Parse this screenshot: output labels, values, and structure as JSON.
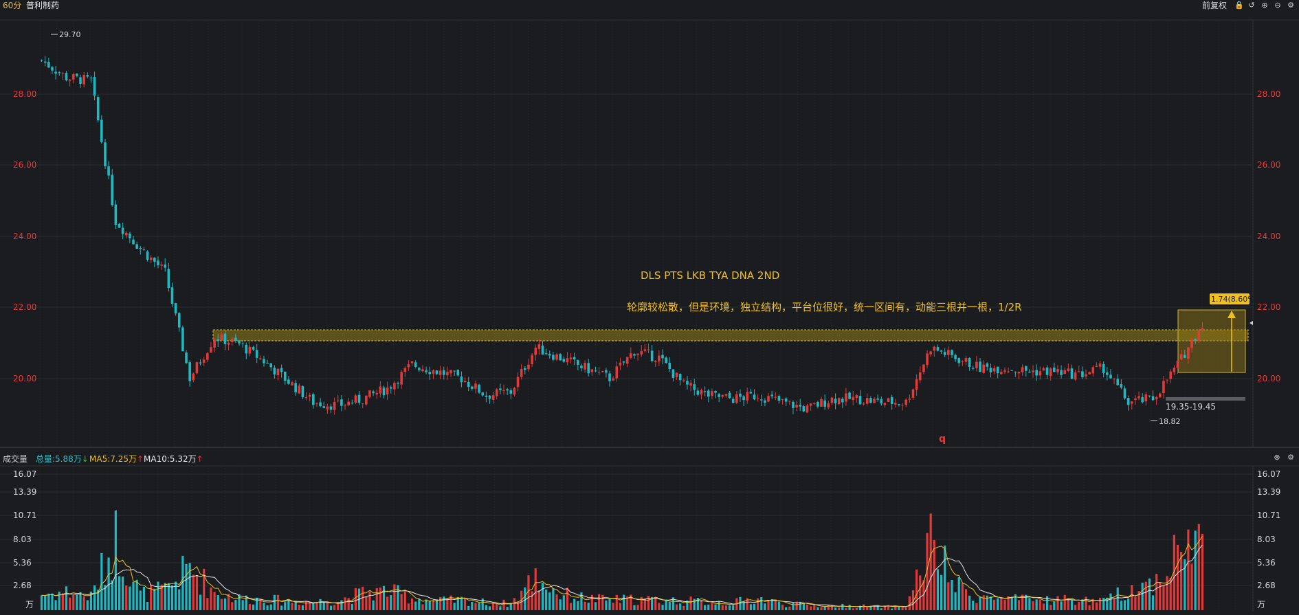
{
  "header": {
    "period": "60分",
    "stock_name": "普利制药",
    "adjust_label": "前复权",
    "icons": [
      "lock-icon",
      "undo-icon",
      "zoom-in-icon",
      "zoom-out-icon",
      "gear-icon"
    ]
  },
  "price_axis": {
    "ticks": [
      "28.00",
      "26.00",
      "24.00",
      "22.00",
      "20.00"
    ],
    "color": "#e83838"
  },
  "annotations": {
    "high_label": "29.70",
    "low_label": "18.82",
    "title": "DLS PTS LKB TYA DNA 2ND",
    "comment": "轮廓较松散，但是环境，独立结构，平台位很好，统一区间有，动能三根并一根，1/2R",
    "target_label": "1.74(8.60%",
    "range_label": "19.35-19.45",
    "marker": "q"
  },
  "volume_panel": {
    "label": "成交量",
    "total": "总量:5.88万",
    "ma5": "MA5:7.25万",
    "ma10": "MA10:5.32万",
    "unit": "万",
    "ticks": [
      "16.07",
      "13.39",
      "10.71",
      "8.03",
      "5.36",
      "2.68"
    ]
  },
  "colors": {
    "background": "#1b1c20",
    "up": "#e03a3a",
    "down": "#22b8c2",
    "ma5": "#f0c020",
    "ma10": "#e6e6e6",
    "highlight": "#b8a020"
  },
  "chart_data": {
    "type": "candlestick",
    "price_range": [
      18.2,
      30.3
    ],
    "volume_range": [
      0,
      16.8
    ],
    "volume_unit": "万",
    "price_path": [
      29.3,
      28.8,
      28.7,
      24.6,
      23.8,
      23.1,
      20.0,
      21.2,
      21.0,
      20.5,
      19.9,
      19.3,
      19.2,
      19.4,
      19.7,
      20.4,
      20.2,
      20.0,
      19.5,
      19.6,
      20.9,
      20.6,
      20.3,
      20.0,
      20.8,
      20.6,
      19.8,
      19.5,
      19.4,
      19.5,
      19.3,
      19.1,
      19.4,
      19.4,
      19.3,
      19.3,
      20.9,
      20.6,
      20.3,
      20.3,
      20.2,
      20.2,
      20.1,
      20.3,
      19.3,
      19.4,
      20.4,
      21.6
    ],
    "volume_path": [
      1.9,
      2.2,
      1.6,
      8.5,
      1.9,
      2.4,
      5.1,
      2.2,
      1.4,
      1.3,
      1.1,
      1.0,
      1.2,
      2.0,
      2.3,
      1.5,
      1.1,
      1.2,
      0.9,
      0.8,
      4.0,
      1.9,
      1.4,
      1.2,
      1.3,
      1.2,
      1.1,
      1.0,
      0.9,
      1.4,
      0.8,
      0.6,
      0.5,
      0.5,
      0.4,
      0.4,
      8.0,
      2.8,
      1.6,
      1.3,
      1.2,
      1.3,
      1.2,
      1.0,
      2.5,
      3.2,
      7.0,
      9.0
    ]
  }
}
